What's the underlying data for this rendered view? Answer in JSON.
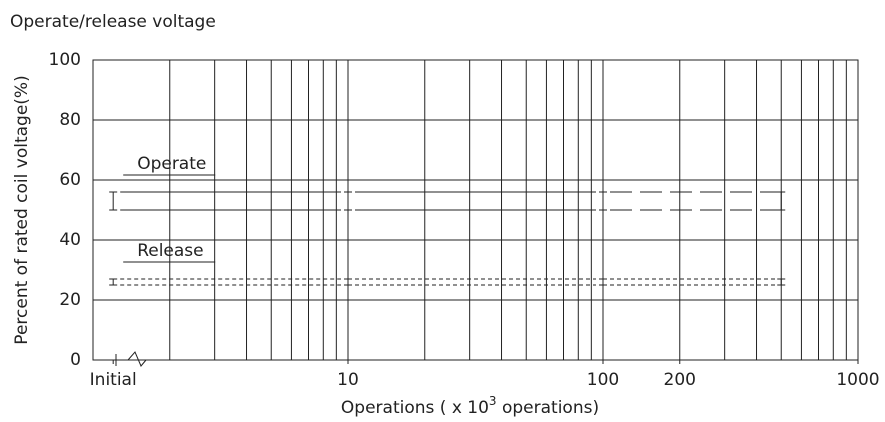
{
  "chart_data": {
    "type": "line",
    "title": "Operate/release voltage",
    "ylabel": "Percent of rated coil voltage(%)",
    "xlabel": {
      "text": "Operations ( x 10",
      "sup": "3",
      "tail": " operations)"
    },
    "log_x": true,
    "xlim": [
      1,
      1000
    ],
    "ylim": [
      0,
      100
    ],
    "yticks": [
      0,
      20,
      40,
      60,
      80,
      100
    ],
    "xticks": [
      {
        "value": 1.2,
        "label": "Initial"
      },
      10,
      100,
      200,
      1000
    ],
    "xgrid": [
      2,
      3,
      4,
      5,
      6,
      7,
      8,
      9,
      10,
      20,
      30,
      40,
      50,
      60,
      70,
      80,
      90,
      100,
      200,
      300,
      400,
      500,
      600,
      700,
      800,
      900
    ],
    "grid": true,
    "x": [
      1.2,
      10,
      100,
      500
    ],
    "series": [
      {
        "name": "Operate",
        "color": "#222",
        "upper": [
          56,
          56,
          56,
          56
        ],
        "lower": [
          50,
          50,
          50,
          50
        ],
        "linestyle": [
          "solid",
          "solid",
          "dashed"
        ]
      },
      {
        "name": "Release",
        "color": "#222",
        "upper": [
          27,
          27,
          27,
          27
        ],
        "lower": [
          25,
          25,
          25,
          25
        ],
        "linestyle": [
          "dotted",
          "dotted",
          "dotted"
        ]
      }
    ]
  }
}
